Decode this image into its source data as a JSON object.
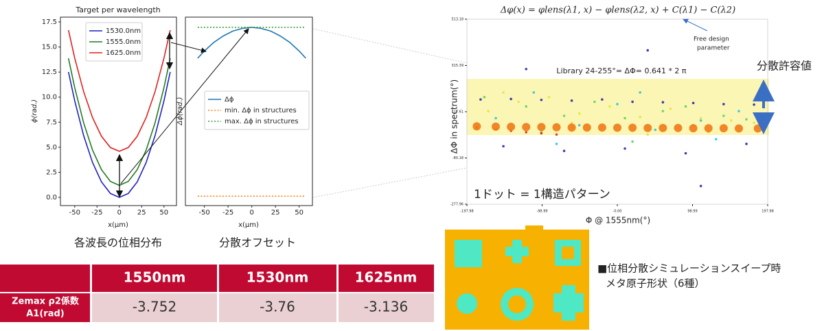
{
  "chart_data": [
    {
      "type": "line",
      "title": "Target per wavelength",
      "xlabel": "x(μm)",
      "ylabel": "ϕ(rad.)",
      "caption": "各波長の位相分布",
      "x": [
        -57,
        -50,
        -40,
        -30,
        -20,
        -10,
        0,
        10,
        20,
        30,
        40,
        50,
        57
      ],
      "series": [
        {
          "name": "1530.0nm",
          "color": "#1f1fbf",
          "values": [
            12.51,
            9.63,
            6.16,
            3.47,
            1.54,
            0.39,
            0,
            0.39,
            1.54,
            3.47,
            6.16,
            9.63,
            12.51
          ]
        },
        {
          "name": "1555.0nm",
          "color": "#1e7b1e",
          "values": [
            13.87,
            10.95,
            7.44,
            4.71,
            2.76,
            1.59,
            1.2,
            1.59,
            2.76,
            4.71,
            7.44,
            10.95,
            13.87
          ]
        },
        {
          "name": "1625.0nm",
          "color": "#e01f1f",
          "values": [
            16.69,
            13.9,
            10.55,
            7.95,
            6.09,
            4.97,
            4.6,
            4.97,
            6.09,
            7.95,
            10.55,
            13.9,
            16.69
          ]
        }
      ],
      "xlim": [
        -66,
        64
      ],
      "xticks": [
        -50,
        -25,
        0,
        25,
        50
      ],
      "ylim": [
        -0.82,
        17.98
      ],
      "yticks": [
        {
          "value": 0,
          "label": "0.0"
        },
        2.5,
        {
          "value": 5,
          "label": "5.0"
        },
        7.5,
        {
          "value": 10,
          "label": "10.0"
        },
        12.5,
        {
          "value": 15,
          "label": "15.0"
        },
        17.5
      ]
    },
    {
      "type": "line",
      "xlabel": "x(μm)",
      "ylabel": "Δϕ(rad.)",
      "caption": "分散オフセット",
      "x": [
        -57,
        -50,
        -40,
        -30,
        -20,
        -10,
        0,
        10,
        20,
        30,
        40,
        50,
        57
      ],
      "series": [
        {
          "name": "Δϕ",
          "color": "#1f77b4",
          "values": [
            3.91,
            4.1,
            4.33,
            4.5,
            4.63,
            4.7,
            4.73,
            4.7,
            4.63,
            4.5,
            4.33,
            4.1,
            3.91
          ]
        },
        {
          "name": "min. Δϕ in structures",
          "color": "#ff7f0e",
          "style": "dotted",
          "values": [
            0.25,
            0.25,
            0.25,
            0.25,
            0.25,
            0.25,
            0.25,
            0.25,
            0.25,
            0.25,
            0.25,
            0.25,
            0.25
          ]
        },
        {
          "name": "max. Δϕ in structures",
          "color": "#2ca02c",
          "style": "dotted",
          "values": [
            4.73,
            4.73,
            4.73,
            4.73,
            4.73,
            4.73,
            4.73,
            4.73,
            4.73,
            4.73,
            4.73,
            4.73,
            4.73
          ]
        }
      ],
      "xlim": [
        -70,
        64
      ],
      "xticks": [
        -50,
        -25,
        0,
        25,
        50
      ],
      "ylim": [
        0,
        5
      ]
    },
    {
      "type": "scatter",
      "title": "Δφ(x) = φlens(λ1, x) − φlens(λ2, x) + C(λ1) − C(λ2)",
      "xlabel": "Φ @ 1555nm(°)",
      "ylabel": "ΔΦ  in spectrum(°)",
      "shaded_range": [
        18,
        258
      ],
      "shade_color": "#fbf6b4",
      "series": [
        {
          "color": "#2a2aa8",
          "x": [
            -180,
            -140,
            -100,
            -60,
            -20,
            20,
            60,
            100,
            140,
            180,
            -150,
            -70,
            10,
            90,
            170,
            -120,
            40,
            110
          ],
          "values": [
            170,
            172,
            168,
            165,
            170,
            160,
            158,
            155,
            150,
            148,
            -30,
            -50,
            -40,
            -60,
            -20,
            300,
            380,
            -200
          ]
        },
        {
          "color": "#2ec4e0",
          "x": [
            -160,
            -110,
            -50,
            0,
            50,
            110,
            160,
            -80,
            30,
            130
          ],
          "values": [
            90,
            200,
            60,
            150,
            40,
            80,
            120,
            -20,
            200,
            0
          ]
        },
        {
          "color": "#5fd35f",
          "x": [
            -175,
            -120,
            -70,
            -30,
            10,
            60,
            100,
            140,
            170,
            -100,
            20,
            90
          ],
          "values": [
            180,
            140,
            100,
            160,
            90,
            120,
            60,
            100,
            85,
            30,
            -10,
            140
          ]
        },
        {
          "color": "#e8e43a",
          "x": [
            -170,
            -130,
            -90,
            -50,
            -10,
            30,
            70,
            110,
            150,
            180,
            -150,
            -60,
            40,
            120
          ],
          "values": [
            120,
            160,
            180,
            110,
            140,
            95,
            130,
            90,
            80,
            70,
            200,
            70,
            20,
            30
          ]
        },
        {
          "color": "#d9301e",
          "x": [
            -185,
            -160,
            -140,
            -120,
            -100,
            -80
          ],
          "values": [
            50,
            42,
            36,
            30,
            25,
            20
          ]
        },
        {
          "color": "#f07a16",
          "size": "large",
          "x": [
            -185,
            -160,
            -140,
            -120,
            -100,
            -80,
            -60,
            -40,
            -20,
            0,
            20,
            40,
            60,
            80,
            100,
            120,
            140,
            160,
            185
          ],
          "values": [
            55,
            54,
            53,
            52,
            52,
            51,
            50,
            50,
            50,
            49,
            49,
            48,
            48,
            48,
            47,
            47,
            47,
            46,
            46
          ]
        }
      ],
      "xlim": [
        -197.98,
        197.98
      ],
      "xticks": [
        -197.98,
        -98.99,
        {
          "value": 0,
          "label": "-0.00"
        },
        98.99,
        197.98
      ],
      "ylim": [
        -277.96,
        513.18
      ],
      "yticks": [
        -277.96,
        -80.18,
        117.61,
        315.39,
        513.18
      ]
    }
  ],
  "annotations": {
    "free_design": [
      "Free design",
      "parameter"
    ],
    "library": "Library 24-255°= ΔΦ= 0.641 * 2 π",
    "dot_note": "1ドット = 1構造パターン",
    "tolerance": "分散許容値"
  },
  "shapes_caption": [
    "■位相分散シミュレーションスイープ時",
    "メタ原子形状（6種）"
  ],
  "table": {
    "header": [
      "1550nm",
      "1530nm",
      "1625nm"
    ],
    "row_label": [
      "Zemax ρ2係数",
      "A1(rad)"
    ],
    "values": [
      "-3.752",
      "-3.76",
      "-3.136"
    ]
  }
}
